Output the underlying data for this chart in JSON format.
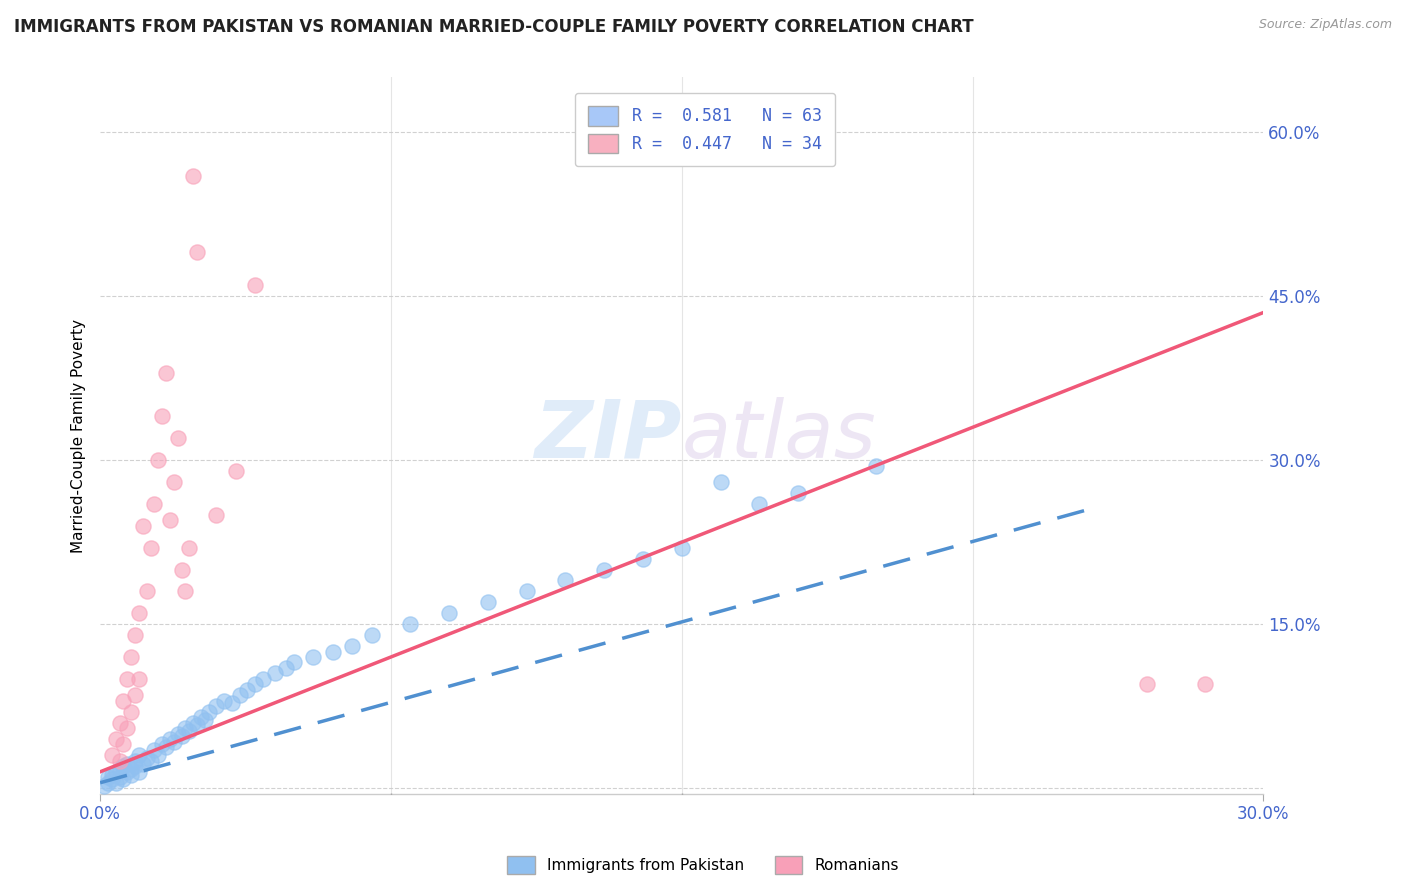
{
  "title": "IMMIGRANTS FROM PAKISTAN VS ROMANIAN MARRIED-COUPLE FAMILY POVERTY CORRELATION CHART",
  "source": "Source: ZipAtlas.com",
  "ylabel": "Married-Couple Family Poverty",
  "xaxis_label_left": "0.0%",
  "xaxis_label_right": "30.0%",
  "yaxis_ticks": [
    0.0,
    0.15,
    0.3,
    0.45,
    0.6
  ],
  "yaxis_labels": [
    "",
    "15.0%",
    "30.0%",
    "45.0%",
    "60.0%"
  ],
  "xlim": [
    0.0,
    0.3
  ],
  "ylim": [
    -0.005,
    0.65
  ],
  "legend_entries": [
    {
      "label": "R =  0.581   N = 63",
      "color": "#a8c8f8"
    },
    {
      "label": "R =  0.447   N = 34",
      "color": "#f8b0c0"
    }
  ],
  "bottom_legend": [
    "Immigrants from Pakistan",
    "Romanians"
  ],
  "blue_scatter_color": "#90c0f0",
  "pink_scatter_color": "#f8a0b8",
  "blue_line_color": "#5090d0",
  "pink_line_color": "#f05878",
  "tick_label_color": "#4466cc",
  "pakistan_scatter": [
    [
      0.001,
      0.002
    ],
    [
      0.002,
      0.005
    ],
    [
      0.002,
      0.01
    ],
    [
      0.003,
      0.008
    ],
    [
      0.003,
      0.012
    ],
    [
      0.004,
      0.005
    ],
    [
      0.004,
      0.015
    ],
    [
      0.005,
      0.01
    ],
    [
      0.005,
      0.018
    ],
    [
      0.006,
      0.008
    ],
    [
      0.006,
      0.02
    ],
    [
      0.007,
      0.015
    ],
    [
      0.007,
      0.022
    ],
    [
      0.008,
      0.012
    ],
    [
      0.008,
      0.018
    ],
    [
      0.009,
      0.02
    ],
    [
      0.009,
      0.025
    ],
    [
      0.01,
      0.015
    ],
    [
      0.01,
      0.03
    ],
    [
      0.011,
      0.022
    ],
    [
      0.012,
      0.028
    ],
    [
      0.013,
      0.025
    ],
    [
      0.014,
      0.035
    ],
    [
      0.015,
      0.03
    ],
    [
      0.016,
      0.04
    ],
    [
      0.017,
      0.038
    ],
    [
      0.018,
      0.045
    ],
    [
      0.019,
      0.042
    ],
    [
      0.02,
      0.05
    ],
    [
      0.021,
      0.048
    ],
    [
      0.022,
      0.055
    ],
    [
      0.023,
      0.052
    ],
    [
      0.024,
      0.06
    ],
    [
      0.025,
      0.058
    ],
    [
      0.026,
      0.065
    ],
    [
      0.027,
      0.062
    ],
    [
      0.028,
      0.07
    ],
    [
      0.03,
      0.075
    ],
    [
      0.032,
      0.08
    ],
    [
      0.034,
      0.078
    ],
    [
      0.036,
      0.085
    ],
    [
      0.038,
      0.09
    ],
    [
      0.04,
      0.095
    ],
    [
      0.042,
      0.1
    ],
    [
      0.045,
      0.105
    ],
    [
      0.048,
      0.11
    ],
    [
      0.05,
      0.115
    ],
    [
      0.055,
      0.12
    ],
    [
      0.06,
      0.125
    ],
    [
      0.065,
      0.13
    ],
    [
      0.07,
      0.14
    ],
    [
      0.08,
      0.15
    ],
    [
      0.09,
      0.16
    ],
    [
      0.1,
      0.17
    ],
    [
      0.11,
      0.18
    ],
    [
      0.12,
      0.19
    ],
    [
      0.13,
      0.2
    ],
    [
      0.14,
      0.21
    ],
    [
      0.15,
      0.22
    ],
    [
      0.16,
      0.28
    ],
    [
      0.17,
      0.26
    ],
    [
      0.18,
      0.27
    ],
    [
      0.2,
      0.295
    ]
  ],
  "romanian_scatter": [
    [
      0.003,
      0.03
    ],
    [
      0.004,
      0.045
    ],
    [
      0.005,
      0.025
    ],
    [
      0.005,
      0.06
    ],
    [
      0.006,
      0.04
    ],
    [
      0.006,
      0.08
    ],
    [
      0.007,
      0.055
    ],
    [
      0.007,
      0.1
    ],
    [
      0.008,
      0.07
    ],
    [
      0.008,
      0.12
    ],
    [
      0.009,
      0.085
    ],
    [
      0.009,
      0.14
    ],
    [
      0.01,
      0.1
    ],
    [
      0.01,
      0.16
    ],
    [
      0.011,
      0.24
    ],
    [
      0.012,
      0.18
    ],
    [
      0.013,
      0.22
    ],
    [
      0.014,
      0.26
    ],
    [
      0.015,
      0.3
    ],
    [
      0.016,
      0.34
    ],
    [
      0.017,
      0.38
    ],
    [
      0.018,
      0.245
    ],
    [
      0.019,
      0.28
    ],
    [
      0.02,
      0.32
    ],
    [
      0.021,
      0.2
    ],
    [
      0.022,
      0.18
    ],
    [
      0.023,
      0.22
    ],
    [
      0.024,
      0.56
    ],
    [
      0.025,
      0.49
    ],
    [
      0.03,
      0.25
    ],
    [
      0.035,
      0.29
    ],
    [
      0.04,
      0.46
    ],
    [
      0.27,
      0.095
    ],
    [
      0.285,
      0.095
    ]
  ]
}
